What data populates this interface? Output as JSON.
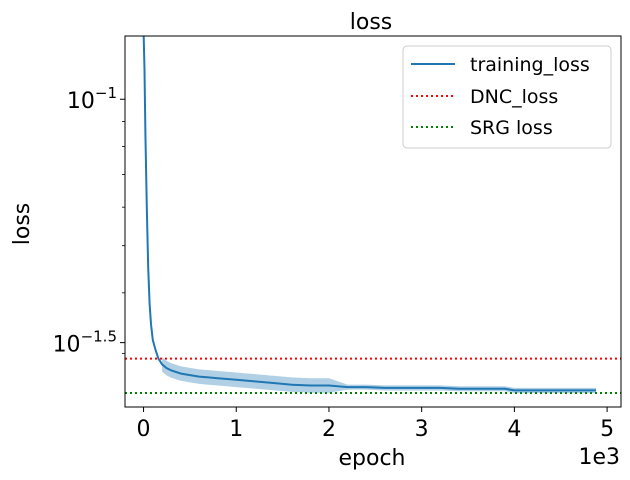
{
  "chart_data": {
    "type": "line",
    "title": "loss",
    "xlabel": "epoch",
    "ylabel": "loss",
    "x_offset_label": "1e3",
    "yscale": "log",
    "xlim": [
      -200,
      5150
    ],
    "ylim": [
      0.0233,
      0.1349
    ],
    "x_ticks": [
      {
        "value": 0,
        "label": "0"
      },
      {
        "value": 1000,
        "label": "1"
      },
      {
        "value": 2000,
        "label": "2"
      },
      {
        "value": 3000,
        "label": "3"
      },
      {
        "value": 4000,
        "label": "4"
      },
      {
        "value": 5000,
        "label": "5"
      }
    ],
    "y_ticks": [
      {
        "value": 0.1,
        "base": "10",
        "exp": "−1"
      },
      {
        "value": 0.0316,
        "base": "10",
        "exp": "−1.5"
      }
    ],
    "grid": false,
    "legend_position": "top-right",
    "series": [
      {
        "name": "training_loss",
        "color": "#1f77b4",
        "style": "solid",
        "x": [
          0,
          10,
          20,
          35,
          50,
          65,
          80,
          100,
          130,
          160,
          200,
          250,
          300,
          400,
          500,
          600,
          700,
          800,
          900,
          1000,
          1200,
          1400,
          1600,
          1800,
          2000,
          2200,
          2400,
          2600,
          2800,
          3000,
          3200,
          3400,
          3600,
          3800,
          3900,
          4000,
          4200,
          4400,
          4600,
          4880
        ],
        "y": [
          0.14,
          0.115,
          0.085,
          0.06,
          0.045,
          0.038,
          0.0345,
          0.032,
          0.0305,
          0.0293,
          0.0285,
          0.028,
          0.0277,
          0.0273,
          0.0271,
          0.0269,
          0.0268,
          0.0267,
          0.0266,
          0.0265,
          0.0263,
          0.0261,
          0.0259,
          0.0258,
          0.0258,
          0.0256,
          0.0256,
          0.0255,
          0.0255,
          0.0255,
          0.0255,
          0.0254,
          0.0254,
          0.0254,
          0.0254,
          0.0252,
          0.0252,
          0.0252,
          0.0252,
          0.0252
        ]
      },
      {
        "name": "DNC_loss",
        "color": "#ff0000",
        "style": "dotted",
        "y": 0.0293
      },
      {
        "name": "SRG loss",
        "color": "#008000",
        "style": "dotted",
        "y": 0.0249
      }
    ]
  }
}
